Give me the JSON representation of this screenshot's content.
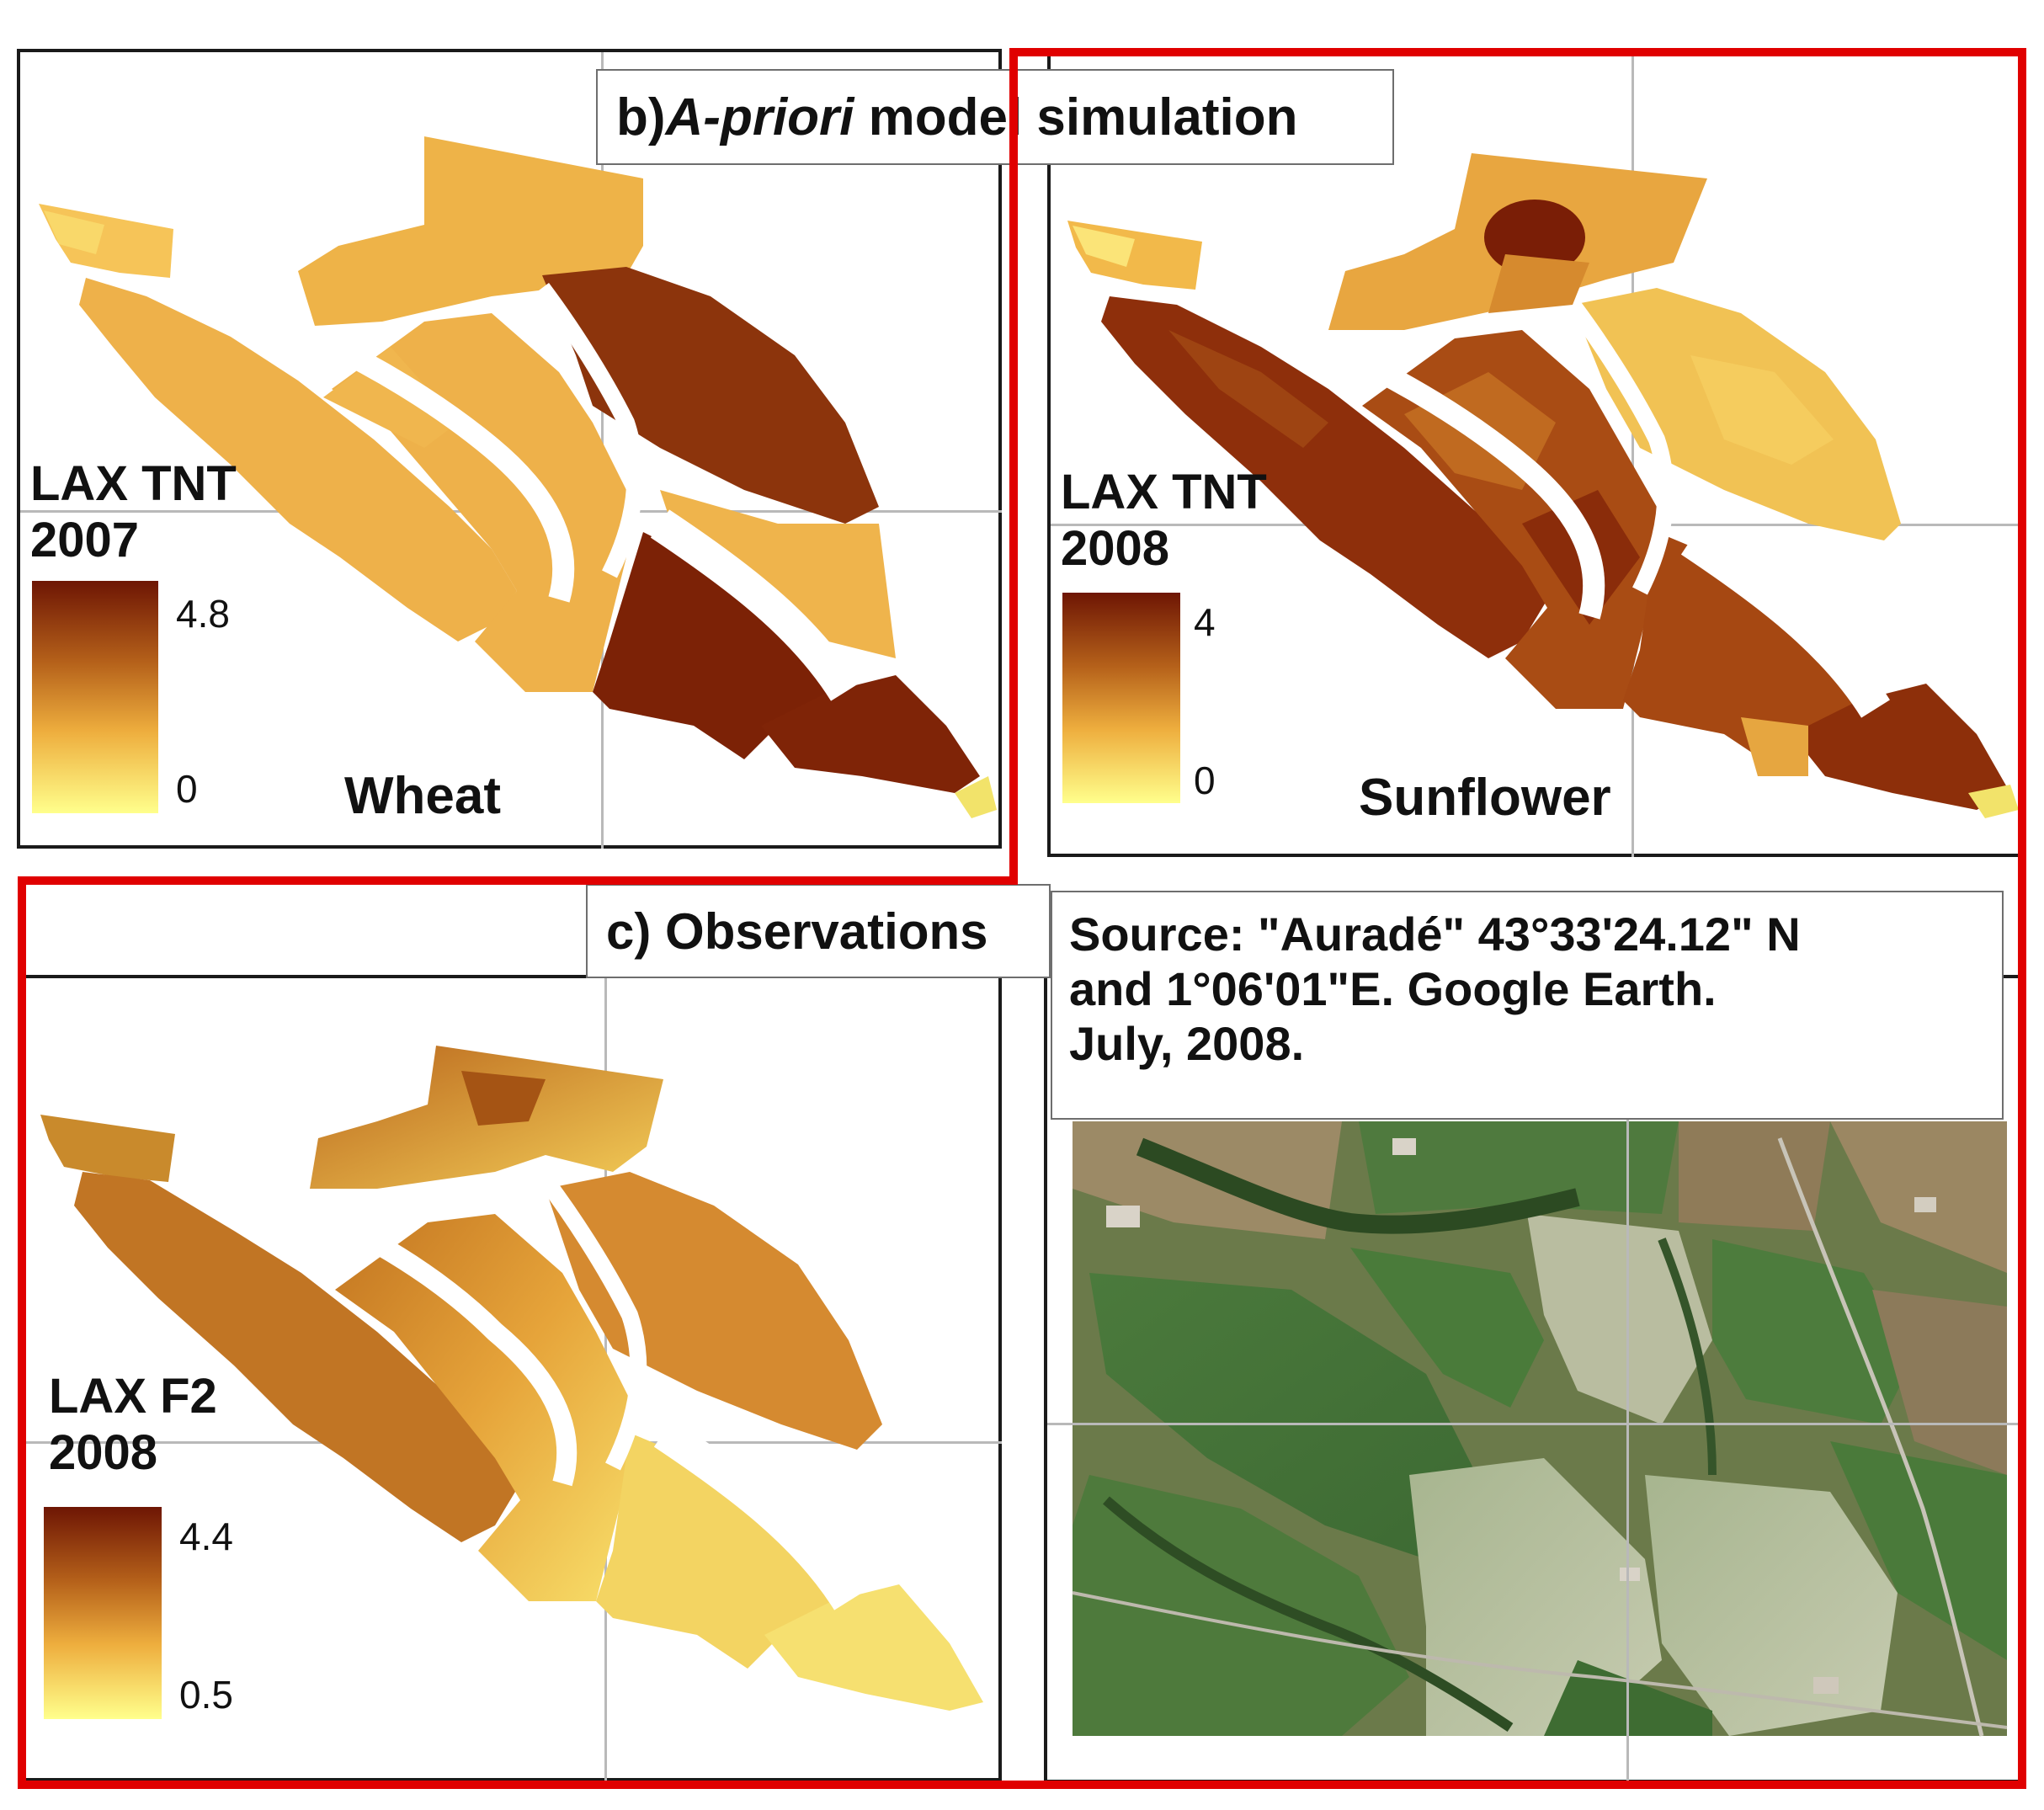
{
  "panel_b": {
    "title_prefix": "b)",
    "title_italic": "A-priori",
    "title_suffix": " model simulation"
  },
  "panel_c": {
    "title": "c) Observations"
  },
  "map_2007": {
    "legend_line1": "LAX TNT",
    "legend_line2": "2007",
    "max_label": "4.8",
    "min_label": "0",
    "crop": "Wheat"
  },
  "map_2008_model": {
    "legend_line1": "LAX TNT",
    "legend_line2": "2008",
    "max_label": "4",
    "min_label": "0",
    "crop": "Sunflower"
  },
  "map_2008_obs": {
    "legend_line1": "LAX F2",
    "legend_line2": "2008",
    "max_label": "4.4",
    "min_label": "0.5"
  },
  "satellite": {
    "source_line1": "Source: \"Auradé\" 43°33'24.12\" N",
    "source_line2": "and 1°06'01\"E. Google Earth.",
    "source_line3": "July, 2008."
  },
  "colors": {
    "high": "#7a1e06",
    "mid": "#e3a43a",
    "low": "#ffff8c",
    "frame_red": "#e00000"
  }
}
